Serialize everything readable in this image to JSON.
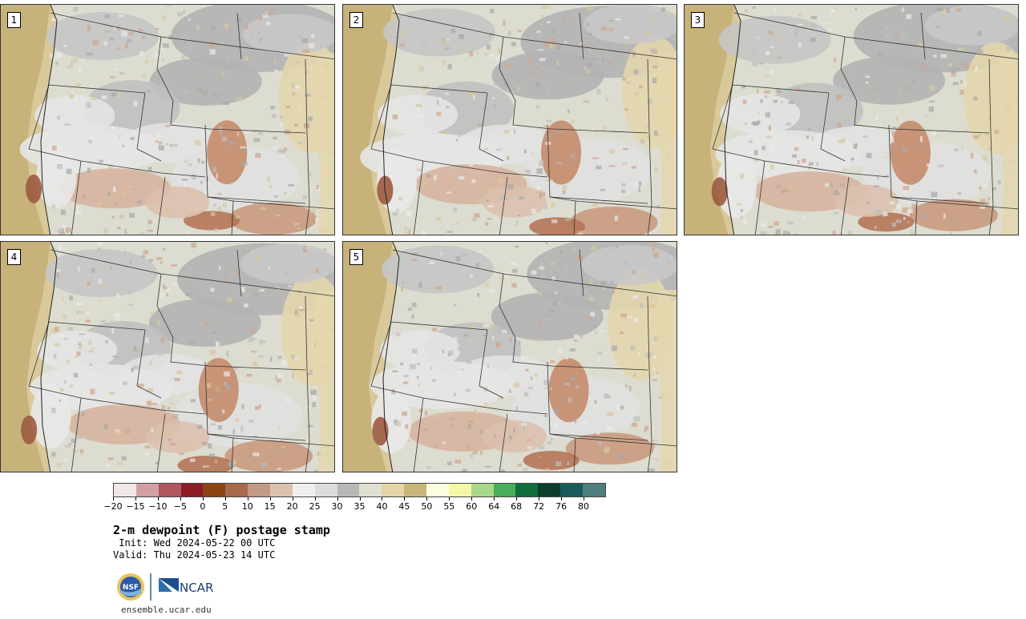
{
  "panels": [
    {
      "label": "1"
    },
    {
      "label": "2"
    },
    {
      "label": "3"
    },
    {
      "label": "4"
    },
    {
      "label": "5"
    }
  ],
  "colorbar": {
    "colors": [
      "#f1e8e6",
      "#d29fa4",
      "#b0565e",
      "#8c1c24",
      "#8a4513",
      "#a66b4a",
      "#c49a84",
      "#dcc0ae",
      "#efefef",
      "#dcdcdc",
      "#b7b7b7",
      "#e0e0d2",
      "#e4d4a8",
      "#c9b47a",
      "#fdfde0",
      "#f6f6a8",
      "#a8d88a",
      "#4cae5c",
      "#0f6e3c",
      "#0b3e2a",
      "#1b5a5a",
      "#4e7e7e"
    ],
    "tick_labels": [
      "−20",
      "−15",
      "−10",
      "−5",
      "0",
      "5",
      "10",
      "15",
      "20",
      "25",
      "30",
      "35",
      "40",
      "45",
      "50",
      "55",
      "60",
      "64",
      "68",
      "72",
      "76",
      "80"
    ]
  },
  "title": "2-m dewpoint (F) postage stamp",
  "init_line": " Init: Wed 2024-05-22 00 UTC",
  "valid_line": "Valid: Thu 2024-05-23 14 UTC",
  "logos": {
    "nsf": "NSF",
    "ncar": "NCAR"
  },
  "site": "ensemble.ucar.edu"
}
